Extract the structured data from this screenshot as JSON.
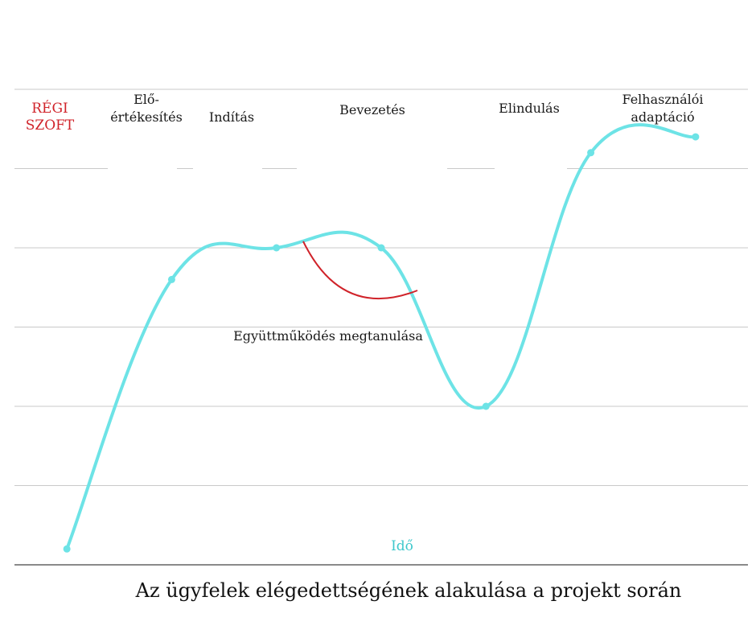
{
  "chart_data": {
    "type": "line",
    "title": "Az ügyfelek elégedettségének alakulása a projekt során",
    "xlabel": "Idő",
    "ylabel": "",
    "grid": true,
    "phases": [
      {
        "lines": [
          "RÉGI",
          "SZOFT"
        ],
        "style": "red"
      },
      {
        "lines": [
          "Elő-",
          "értékesítés"
        ],
        "style": "normal"
      },
      {
        "lines": [
          "Indítás"
        ],
        "style": "normal"
      },
      {
        "lines": [
          "Bevezetés"
        ],
        "style": "normal"
      },
      {
        "lines": [
          "Elindulás"
        ],
        "style": "normal"
      },
      {
        "lines": [
          "Felhasználói",
          "adaptáció"
        ],
        "style": "normal"
      }
    ],
    "series": [
      {
        "color": "#6de3e6",
        "x": [
          0.5,
          1.5,
          2.5,
          3.5,
          4.5,
          5.5,
          6.5
        ],
        "y": [
          0.2,
          3.6,
          4.0,
          4.0,
          2.0,
          5.2,
          5.4
        ]
      }
    ],
    "annotation": {
      "text": "Együttműködés megtanulása",
      "color": "#d0232a"
    },
    "xlim": [
      0,
      7
    ],
    "ylim": [
      0,
      6
    ]
  }
}
